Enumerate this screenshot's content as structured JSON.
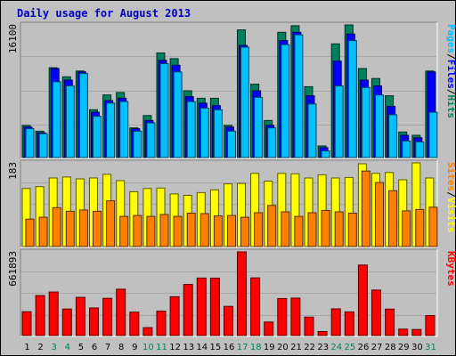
{
  "chart_data": {
    "type": "bar",
    "title": "Daily usage for August 2013",
    "categories": [
      "1",
      "2",
      "3",
      "4",
      "5",
      "6",
      "7",
      "8",
      "9",
      "10",
      "11",
      "12",
      "13",
      "14",
      "15",
      "16",
      "17",
      "18",
      "19",
      "20",
      "21",
      "22",
      "23",
      "24",
      "25",
      "26",
      "27",
      "28",
      "29",
      "30",
      "31"
    ],
    "weekend_days": [
      "3",
      "4",
      "10",
      "11",
      "17",
      "18",
      "24",
      "25",
      "31"
    ],
    "panels": [
      {
        "id": "top",
        "ymax": 16100,
        "ymax_label": "16100",
        "legend": [
          "Pages",
          "/",
          "Files",
          "/",
          "Hits"
        ],
        "legend_colors": [
          "#00c0ff",
          "#000000",
          "#0000ff",
          "#000000",
          "#00805c"
        ],
        "series": [
          {
            "name": "Hits",
            "color": "#00805c",
            "values": [
              3900,
              3200,
              10900,
              9800,
              10500,
              5800,
              7600,
              7900,
              3600,
              5100,
              12700,
              12000,
              8100,
              7200,
              7200,
              3900,
              15500,
              8900,
              4500,
              15200,
              16000,
              8600,
              1400,
              13800,
              16100,
              10800,
              9600,
              7500,
              3100,
              2700,
              10500
            ]
          },
          {
            "name": "Files",
            "color": "#0000ff",
            "values": [
              3700,
              3000,
              10800,
              9400,
              10400,
              5500,
              6900,
              7200,
              3500,
              4500,
              11800,
              11200,
              7400,
              6600,
              6300,
              3700,
              13600,
              8100,
              3900,
              14200,
              15200,
              7500,
              1200,
              11700,
              15000,
              9400,
              8700,
              6200,
              2700,
              2400,
              10400
            ]
          },
          {
            "name": "Pages",
            "color": "#00c0ff",
            "values": [
              3500,
              2900,
              9200,
              8700,
              10200,
              5000,
              6600,
              6800,
              3200,
              4200,
              11400,
              10400,
              6800,
              6000,
              5800,
              3200,
              13400,
              7300,
              3600,
              13700,
              14900,
              6500,
              800,
              8700,
              14200,
              8500,
              7600,
              5200,
              2000,
              1900,
              5500
            ]
          }
        ]
      },
      {
        "id": "middle",
        "ymax": 183,
        "ymax_label": "183",
        "legend": [
          "Sites",
          "/",
          "Visits"
        ],
        "legend_colors": [
          "#ff8000",
          "#000000",
          "#ffff00"
        ],
        "series": [
          {
            "name": "Visits",
            "color": "#ffff00",
            "values": [
              127,
              131,
              150,
              152,
              148,
              150,
              158,
              144,
              120,
              127,
              128,
              115,
              112,
              118,
              124,
              137,
              138,
              160,
              143,
              160,
              159,
              150,
              157,
              150,
              151,
              181,
              160,
              162,
              146,
              183,
              150
            ]
          },
          {
            "name": "Sites",
            "color": "#ff8000",
            "values": [
              60,
              64,
              85,
              77,
              80,
              77,
              100,
              66,
              68,
              66,
              70,
              66,
              73,
              72,
              67,
              68,
              64,
              74,
              90,
              76,
              66,
              74,
              79,
              76,
              73,
              165,
              140,
              122,
              78,
              81,
              86
            ]
          }
        ]
      },
      {
        "id": "bottom",
        "ymax": 661893,
        "ymax_label": "661893",
        "legend": [
          "KBytes"
        ],
        "legend_colors": [
          "#ff0000"
        ],
        "series": [
          {
            "name": "KBytes",
            "color": "#ff0000",
            "values": [
              189000,
              316000,
              344000,
              210000,
              302000,
              218000,
              294000,
              367000,
              185000,
              63000,
              193000,
              307000,
              404000,
              455000,
              454000,
              231000,
              661893,
              456000,
              107000,
              293000,
              296000,
              146000,
              32000,
              211000,
              187000,
              558000,
              360000,
              209000,
              51000,
              48000,
              158000
            ]
          }
        ]
      }
    ],
    "grid": true
  }
}
